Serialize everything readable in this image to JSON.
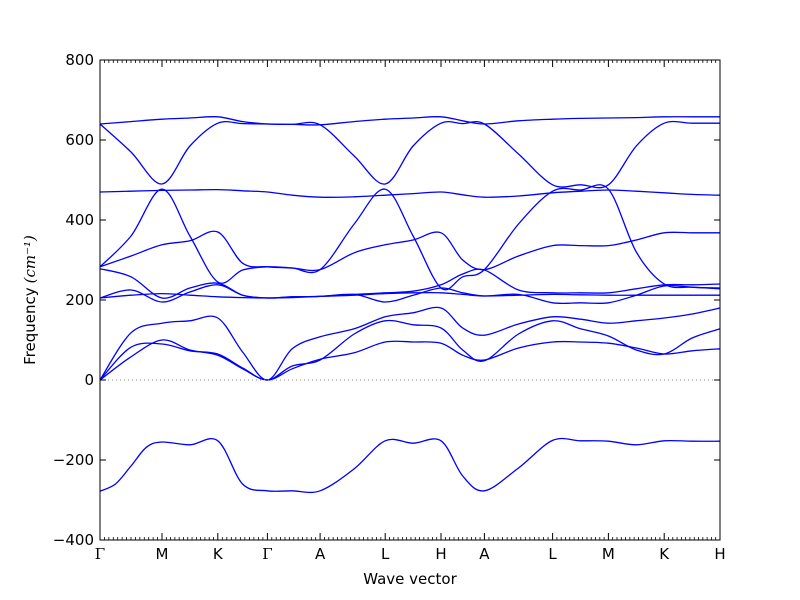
{
  "chart_data": {
    "type": "line",
    "title": "",
    "xlabel": "Wave vector",
    "ylabel": "Frequency",
    "ylabel_unit": "(cm⁻¹)",
    "ylim": [
      -400,
      800
    ],
    "yticks": [
      -400,
      -200,
      0,
      200,
      400,
      600,
      800
    ],
    "ytick_labels": [
      "−400",
      "−200",
      "0",
      "200",
      "400",
      "600",
      "800"
    ],
    "xlim": [
      0,
      10
    ],
    "grid": false,
    "legend": "none",
    "line_color": "#0000ff",
    "zero_line_color": "#888888",
    "high_symmetry_points": [
      {
        "label": "Γ",
        "x": 0
      },
      {
        "label": "M",
        "x": 1
      },
      {
        "label": "K",
        "x": 1.9
      },
      {
        "label": "Γ",
        "x": 2.7
      },
      {
        "label": "A",
        "x": 3.55
      },
      {
        "label": "L",
        "x": 4.6
      },
      {
        "label": "H",
        "x": 5.5
      },
      {
        "label": "A",
        "x": 6.2
      },
      {
        "label": "L",
        "x": 7.3
      },
      {
        "label": "M",
        "x": 8.2
      },
      {
        "label": "K",
        "x": 9.1
      },
      {
        "label": "H",
        "x": 10
      }
    ],
    "series": [
      {
        "x": [
          0,
          0.25,
          0.5,
          0.75,
          1,
          1.45,
          1.9,
          2.3,
          2.7,
          3.1,
          3.55,
          4.1,
          4.6,
          5.05,
          5.5,
          5.85,
          6.2,
          6.75,
          7.3,
          7.75,
          8.2,
          8.65,
          9.1,
          9.55,
          10
        ],
        "y": [
          -278,
          -260,
          -215,
          -168,
          -155,
          -162,
          -152,
          -260,
          -277,
          -277,
          -277,
          -222,
          -152,
          -158,
          -152,
          -240,
          -277,
          -220,
          -151,
          -152,
          -153,
          -162,
          -152,
          -153,
          -153
        ]
      },
      {
        "x": [
          0,
          0.5,
          1,
          1.45,
          1.9,
          2.3,
          2.7,
          3.1,
          3.55,
          4.1,
          4.6,
          5.05,
          5.5,
          5.85,
          6.2,
          6.75,
          7.3,
          7.75,
          8.2,
          8.65,
          9.1,
          9.55,
          10
        ],
        "y": [
          0,
          58,
          100,
          75,
          62,
          28,
          0,
          28,
          52,
          68,
          95,
          95,
          92,
          62,
          50,
          80,
          95,
          95,
          92,
          80,
          65,
          73,
          78
        ]
      },
      {
        "x": [
          0,
          0.5,
          1,
          1.45,
          1.9,
          2.3,
          2.7,
          3.1,
          3.55,
          4.1,
          4.6,
          5.05,
          5.5,
          5.85,
          6.2,
          6.75,
          7.3,
          7.75,
          8.2,
          8.65,
          9.1,
          9.55,
          10
        ],
        "y": [
          0,
          82,
          90,
          73,
          65,
          30,
          0,
          35,
          50,
          115,
          148,
          138,
          130,
          75,
          48,
          115,
          148,
          128,
          110,
          75,
          65,
          105,
          128
        ]
      },
      {
        "x": [
          0,
          0.5,
          1,
          1.45,
          1.9,
          2.3,
          2.7,
          3.1,
          3.55,
          4.1,
          4.6,
          5.05,
          5.5,
          5.85,
          6.2,
          6.75,
          7.3,
          7.75,
          8.2,
          8.65,
          9.1,
          9.55,
          10
        ],
        "y": [
          0,
          118,
          142,
          148,
          155,
          70,
          0,
          78,
          108,
          128,
          158,
          168,
          180,
          130,
          112,
          140,
          158,
          152,
          142,
          148,
          155,
          165,
          180
        ]
      },
      {
        "x": [
          0,
          0.5,
          1,
          1.45,
          1.9,
          2.3,
          2.7,
          3.1,
          3.55,
          4.1,
          4.6,
          5.05,
          5.5,
          5.85,
          6.2,
          6.75,
          7.3,
          7.75,
          8.2,
          8.65,
          9.1,
          9.55,
          10
        ],
        "y": [
          205,
          212,
          216,
          212,
          208,
          206,
          205,
          206,
          209,
          212,
          216,
          218,
          218,
          214,
          210,
          212,
          214,
          213,
          212,
          212,
          212,
          212,
          212
        ]
      },
      {
        "x": [
          0,
          0.5,
          1,
          1.45,
          1.9,
          2.3,
          2.7,
          3.1,
          3.55,
          4.1,
          4.6,
          5.05,
          5.5,
          5.85,
          6.2,
          6.75,
          7.3,
          7.75,
          8.2,
          8.65,
          9.1,
          9.55,
          10
        ],
        "y": [
          205,
          225,
          195,
          220,
          238,
          212,
          205,
          208,
          209,
          214,
          195,
          212,
          230,
          218,
          210,
          214,
          193,
          193,
          193,
          212,
          235,
          232,
          228
        ]
      },
      {
        "x": [
          0,
          0.5,
          1,
          1.45,
          1.9,
          2.3,
          2.7,
          3.1,
          3.55,
          4.1,
          4.6,
          5.05,
          5.5,
          5.85,
          6.2,
          6.75,
          7.3,
          7.75,
          8.2,
          8.65,
          9.1,
          9.55,
          10
        ],
        "y": [
          278,
          258,
          205,
          230,
          242,
          212,
          205,
          208,
          209,
          214,
          218,
          222,
          238,
          265,
          275,
          225,
          218,
          218,
          218,
          228,
          238,
          238,
          240
        ]
      },
      {
        "x": [
          0,
          0.5,
          1,
          1.45,
          1.9,
          2.3,
          2.7,
          3.1,
          3.55,
          4.1,
          4.6,
          5.05,
          5.5,
          5.85,
          6.2,
          6.75,
          7.3,
          7.75,
          8.2,
          8.65,
          9.1,
          9.55,
          10
        ],
        "y": [
          283,
          310,
          338,
          348,
          370,
          292,
          283,
          280,
          276,
          318,
          338,
          350,
          368,
          300,
          276,
          310,
          336,
          336,
          336,
          350,
          368,
          368,
          368
        ]
      },
      {
        "x": [
          0,
          0.5,
          1,
          1.45,
          1.9,
          2.3,
          2.7,
          3.1,
          3.55,
          4.1,
          4.6,
          5.05,
          5.5,
          5.85,
          6.2,
          6.75,
          7.3,
          7.75,
          8.2,
          8.65,
          9.1,
          9.55,
          10
        ],
        "y": [
          283,
          360,
          477,
          360,
          245,
          275,
          283,
          280,
          276,
          390,
          477,
          360,
          230,
          258,
          276,
          390,
          472,
          475,
          477,
          320,
          240,
          232,
          230
        ]
      },
      {
        "x": [
          0,
          0.5,
          1,
          1.45,
          1.9,
          2.3,
          2.7,
          3.1,
          3.55,
          4.1,
          4.6,
          5.05,
          5.5,
          5.85,
          6.2,
          6.75,
          7.3,
          7.75,
          8.2,
          8.65,
          9.1,
          9.55,
          10
        ],
        "y": [
          470,
          472,
          474,
          475,
          476,
          473,
          470,
          462,
          457,
          458,
          462,
          466,
          470,
          463,
          457,
          460,
          468,
          472,
          475,
          472,
          468,
          464,
          462
        ]
      },
      {
        "x": [
          0,
          0.5,
          1,
          1.45,
          1.9,
          2.3,
          2.7,
          3.1,
          3.55,
          4.1,
          4.6,
          5.05,
          5.5,
          5.85,
          6.2,
          6.75,
          7.3,
          7.75,
          8.2,
          8.65,
          9.1,
          9.55,
          10
        ],
        "y": [
          640,
          570,
          490,
          585,
          642,
          641,
          640,
          639,
          638,
          560,
          490,
          585,
          642,
          641,
          640,
          565,
          488,
          488,
          488,
          585,
          642,
          642,
          642
        ]
      },
      {
        "x": [
          0,
          0.5,
          1,
          1.45,
          1.9,
          2.3,
          2.7,
          3.1,
          3.55,
          4.1,
          4.6,
          5.05,
          5.5,
          5.85,
          6.2,
          6.75,
          7.3,
          7.75,
          8.2,
          8.65,
          9.1,
          9.55,
          10
        ],
        "y": [
          640,
          646,
          652,
          655,
          658,
          646,
          640,
          639,
          638,
          646,
          652,
          655,
          658,
          648,
          640,
          648,
          652,
          654,
          655,
          656,
          658,
          658,
          658
        ]
      }
    ]
  }
}
